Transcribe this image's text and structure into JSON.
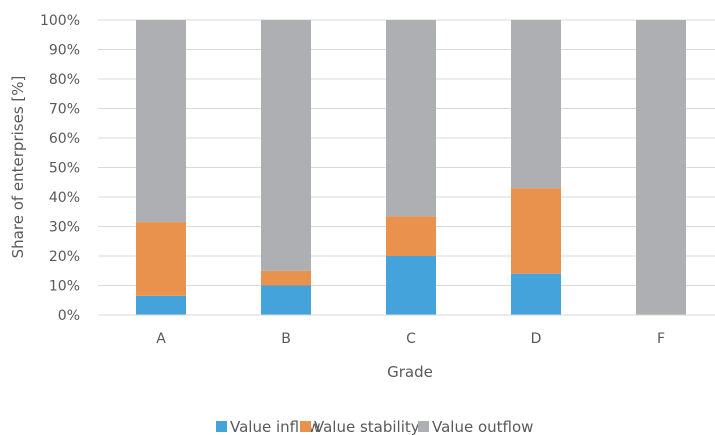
{
  "chart_data": {
    "type": "bar",
    "stacked": true,
    "categories": [
      "A",
      "B",
      "C",
      "D",
      "F"
    ],
    "series": [
      {
        "name": "Value inflow",
        "color": "#44a3da",
        "values": [
          6.5,
          10,
          20,
          14,
          0
        ]
      },
      {
        "name": "Value stability",
        "color": "#e8924e",
        "values": [
          25,
          5,
          13.5,
          29,
          0
        ]
      },
      {
        "name": "Value outflow",
        "color": "#adafb3",
        "values": [
          68.5,
          85,
          66.5,
          57,
          100
        ]
      }
    ],
    "title": "",
    "xlabel": "Grade",
    "ylabel": "Share of enterprises [%]",
    "ylim": [
      0,
      100
    ],
    "yticks": [
      "0%",
      "10%",
      "20%",
      "30%",
      "40%",
      "50%",
      "60%",
      "70%",
      "80%",
      "90%",
      "100%"
    ],
    "grid": true,
    "legend": "bottom"
  }
}
